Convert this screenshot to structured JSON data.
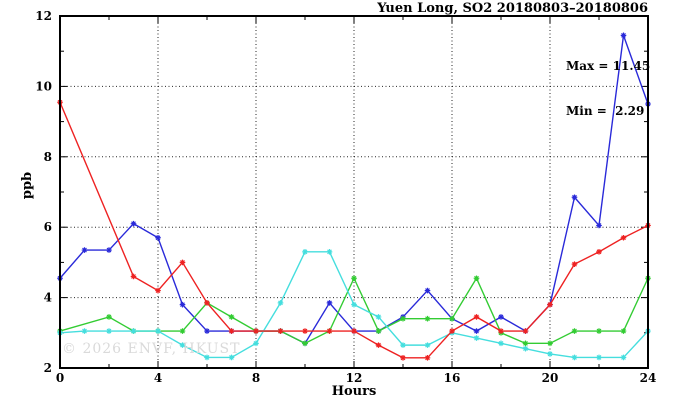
{
  "title": "Yuen Long, SO2 20180803–20180806",
  "annotation": {
    "max_label": "Max = 11.45",
    "min_label": "Min =  2.29"
  },
  "watermark": "© 2026 ENVF, HKUST",
  "chart_data": {
    "type": "line",
    "title": "Yuen Long, SO2 20180803–20180806",
    "xlabel": "Hours",
    "ylabel": "ppb",
    "xlim": [
      0,
      24
    ],
    "ylim": [
      2,
      12
    ],
    "x_major_ticks": [
      0,
      4,
      8,
      12,
      16,
      20,
      24
    ],
    "x_minor_ticks": [
      2,
      6,
      10,
      14,
      18,
      22
    ],
    "y_major_ticks": [
      2,
      4,
      6,
      8,
      10,
      12
    ],
    "y_minor_ticks": [
      3,
      5,
      7,
      9,
      11
    ],
    "x_gridlines": [
      4,
      8,
      12,
      16,
      20
    ],
    "y_gridlines": [
      4,
      6,
      8,
      10
    ],
    "grid": true,
    "legend": "none",
    "max": 11.45,
    "min": 2.29,
    "x": [
      0,
      1,
      2,
      3,
      4,
      5,
      6,
      7,
      8,
      9,
      10,
      11,
      12,
      13,
      14,
      15,
      16,
      17,
      18,
      19,
      20,
      21,
      22,
      23,
      24
    ],
    "series": [
      {
        "name": "series-blue",
        "color": "#2a2ad9",
        "values": [
          4.55,
          5.35,
          5.35,
          6.1,
          5.7,
          3.8,
          3.05,
          3.05,
          3.05,
          3.05,
          2.7,
          3.85,
          3.05,
          3.05,
          3.45,
          4.2,
          3.4,
          3.05,
          3.45,
          3.05,
          3.8,
          6.85,
          6.05,
          11.45,
          9.5
        ]
      },
      {
        "name": "series-green",
        "color": "#33cc33",
        "values": [
          3.05,
          null,
          3.45,
          3.05,
          3.05,
          3.05,
          3.85,
          3.45,
          3.05,
          3.05,
          2.7,
          3.05,
          4.55,
          3.05,
          3.4,
          3.4,
          3.4,
          4.55,
          3.0,
          2.7,
          2.7,
          3.05,
          3.05,
          3.05,
          4.55
        ]
      },
      {
        "name": "series-cyan",
        "color": "#45dede",
        "values": [
          3.0,
          3.05,
          3.05,
          3.05,
          3.05,
          2.65,
          2.3,
          2.3,
          2.7,
          3.85,
          5.3,
          5.3,
          3.8,
          3.45,
          2.65,
          2.65,
          3.0,
          2.85,
          2.7,
          2.55,
          2.4,
          2.3,
          2.3,
          2.3,
          3.05
        ]
      },
      {
        "name": "series-red",
        "color": "#ee2222",
        "values": [
          9.55,
          null,
          null,
          4.6,
          4.2,
          5.0,
          3.85,
          3.05,
          3.05,
          3.05,
          3.05,
          3.05,
          3.05,
          2.65,
          2.29,
          2.29,
          3.05,
          3.45,
          3.05,
          3.05,
          3.8,
          4.95,
          5.3,
          5.7,
          6.05
        ]
      }
    ]
  }
}
